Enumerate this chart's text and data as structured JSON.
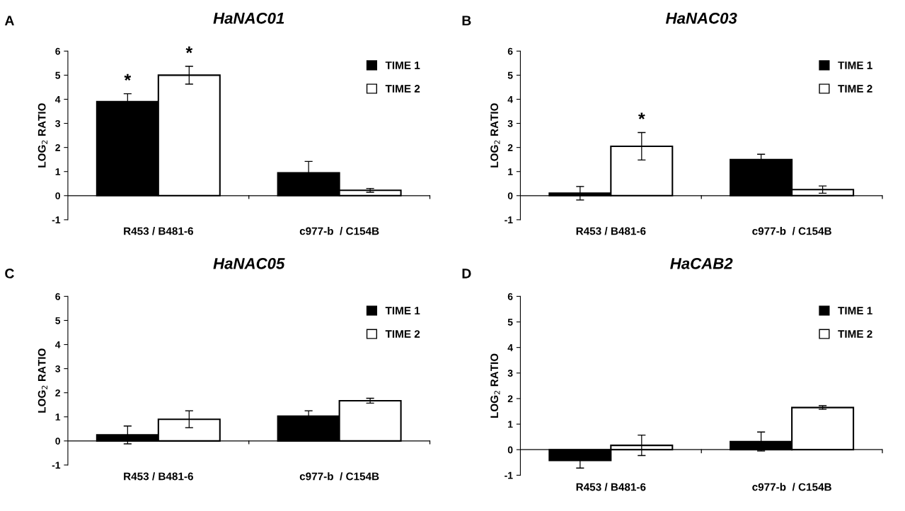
{
  "chart_data": [
    {
      "type": "bar",
      "title": "HaNAC01",
      "ylabel": "LOG$_{2}$ RATIO",
      "categories": [
        "R453 / B481-6",
        "c977-b  / C154B"
      ],
      "ylim": [
        -1,
        6
      ],
      "yticks": [
        -1,
        0,
        1,
        2,
        3,
        4,
        5,
        6
      ],
      "legend": "top right",
      "tick_labels": "y",
      "series": [
        {
          "name": "TIME 1",
          "color": "#000000",
          "values": [
            3.9,
            0.95
          ],
          "errors": [
            0.33,
            0.47
          ],
          "value_labels": [
            "*",
            null
          ]
        },
        {
          "name": "TIME 2",
          "color": "#ffffff",
          "values": [
            5.0,
            0.22
          ],
          "errors": [
            0.37,
            0.08
          ],
          "value_labels": [
            "*",
            null
          ]
        }
      ],
      "annotations": [
        "A"
      ]
    },
    {
      "type": "bar",
      "title": "HaNAC03",
      "ylabel": "LOG$_{2}$ RATIO",
      "categories": [
        "R453 / B481-6",
        "c977-b  / C154B"
      ],
      "ylim": [
        -1,
        6
      ],
      "yticks": [
        -1,
        0,
        1,
        2,
        3,
        4,
        5,
        6
      ],
      "legend": "top right",
      "tick_labels": "y",
      "series": [
        {
          "name": "TIME 1",
          "color": "#000000",
          "values": [
            0.1,
            1.5
          ],
          "errors": [
            0.28,
            0.22
          ]
        },
        {
          "name": "TIME 2",
          "color": "#ffffff",
          "values": [
            2.05,
            0.25
          ],
          "errors": [
            0.57,
            0.15
          ],
          "value_labels": [
            "*",
            null
          ]
        }
      ],
      "annotations": [
        "B"
      ]
    },
    {
      "type": "bar",
      "title": "HaNAC05",
      "ylabel": "LOG$_{2}$ RATIO",
      "categories": [
        "R453 / B481-6",
        "c977-b  / C154B"
      ],
      "ylim": [
        -1,
        6
      ],
      "yticks": [
        -1,
        0,
        1,
        2,
        3,
        4,
        5,
        6
      ],
      "legend": "top right",
      "tick_labels": "y",
      "series": [
        {
          "name": "TIME 1",
          "color": "#000000",
          "values": [
            0.25,
            1.03
          ],
          "errors": [
            0.37,
            0.22
          ]
        },
        {
          "name": "TIME 2",
          "color": "#ffffff",
          "values": [
            0.9,
            1.67
          ],
          "errors": [
            0.35,
            0.1
          ]
        }
      ],
      "annotations": [
        "C"
      ]
    },
    {
      "type": "bar",
      "title": "HaCAB2",
      "ylabel": "LOG$_{2}$ RATIO",
      "categories": [
        "R453 / B481-6",
        "c977-b  / C154B"
      ],
      "ylim": [
        -1,
        6
      ],
      "yticks": [
        -1,
        0,
        1,
        2,
        3,
        4,
        5,
        6
      ],
      "legend": "top right",
      "tick_labels": "y",
      "series": [
        {
          "name": "TIME 1",
          "color": "#000000",
          "values": [
            -0.42,
            0.32
          ],
          "errors": [
            0.3,
            0.37
          ]
        },
        {
          "name": "TIME 2",
          "color": "#ffffff",
          "values": [
            0.17,
            1.65
          ],
          "errors": [
            0.4,
            0.07
          ]
        }
      ],
      "annotations": [
        "D"
      ]
    }
  ]
}
